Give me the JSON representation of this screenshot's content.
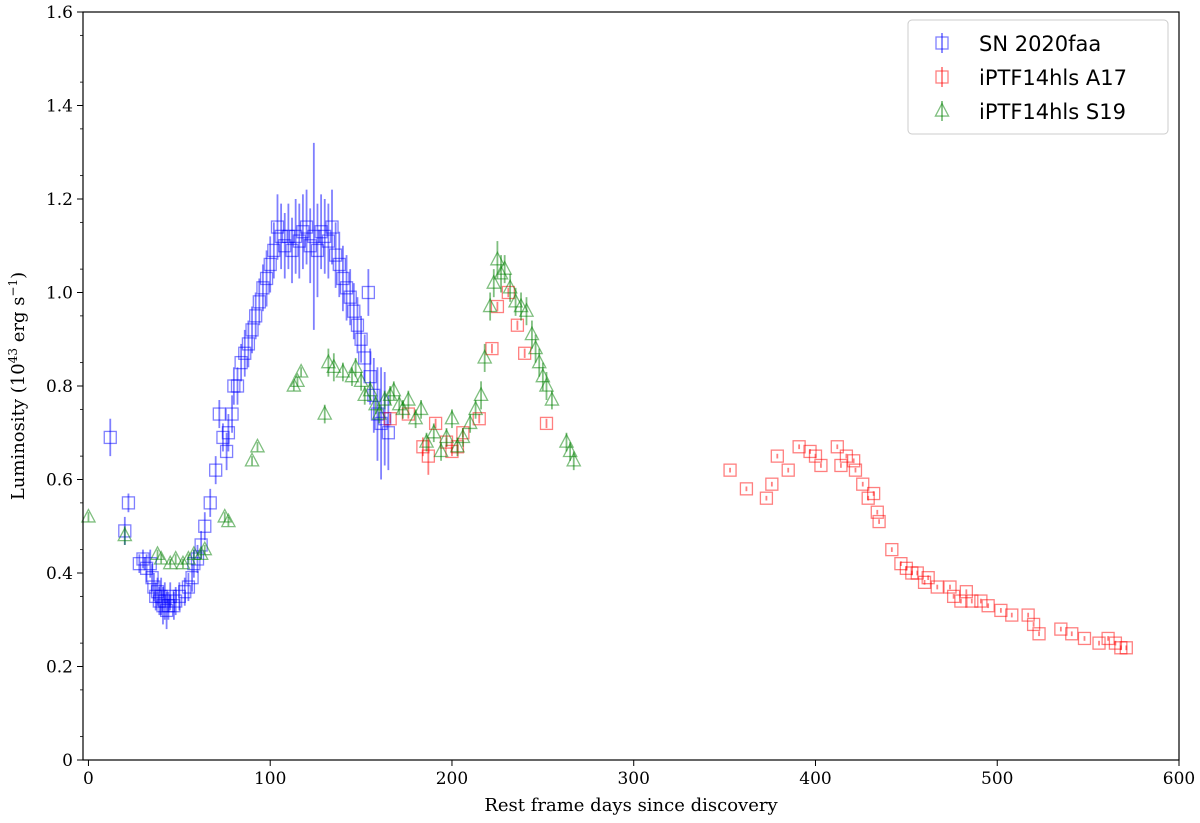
{
  "chart_data": {
    "type": "scatter",
    "title": "",
    "xlabel": "Rest frame days since discovery",
    "ylabel_parts": [
      "Luminosity (10",
      "43",
      " erg s",
      "−1",
      ")"
    ],
    "xlim": [
      -3,
      600
    ],
    "ylim": [
      0,
      1.6
    ],
    "x_ticks": [
      0,
      100,
      200,
      300,
      400,
      500,
      600
    ],
    "y_ticks": [
      0,
      0.2,
      0.4,
      0.6,
      0.8,
      1.0,
      1.2,
      1.4,
      1.6
    ],
    "y_tick_labels": [
      "0",
      "0.2",
      "0.4",
      "0.6",
      "0.8",
      "1.0",
      "1.2",
      "1.4",
      "1.6"
    ],
    "grid": false,
    "legend_position": "top-right",
    "series": [
      {
        "name": "SN 2020faa",
        "marker": "square-errorbar",
        "color": "#0000ff",
        "points": [
          [
            12,
            0.69,
            0.04
          ],
          [
            20,
            0.49,
            0.03
          ],
          [
            22,
            0.55,
            0.02
          ],
          [
            28,
            0.42,
            0.02
          ],
          [
            30,
            0.43,
            0.02
          ],
          [
            32,
            0.41,
            0.03
          ],
          [
            34,
            0.42,
            0.03
          ],
          [
            35,
            0.39,
            0.03
          ],
          [
            36,
            0.37,
            0.03
          ],
          [
            37,
            0.35,
            0.03
          ],
          [
            38,
            0.36,
            0.03
          ],
          [
            39,
            0.34,
            0.03
          ],
          [
            40,
            0.35,
            0.04
          ],
          [
            41,
            0.33,
            0.04
          ],
          [
            42,
            0.34,
            0.04
          ],
          [
            43,
            0.32,
            0.04
          ],
          [
            44,
            0.33,
            0.03
          ],
          [
            45,
            0.35,
            0.03
          ],
          [
            47,
            0.33,
            0.03
          ],
          [
            48,
            0.34,
            0.03
          ],
          [
            50,
            0.35,
            0.03
          ],
          [
            53,
            0.36,
            0.03
          ],
          [
            55,
            0.37,
            0.03
          ],
          [
            57,
            0.39,
            0.03
          ],
          [
            58,
            0.42,
            0.03
          ],
          [
            60,
            0.43,
            0.03
          ],
          [
            62,
            0.46,
            0.03
          ],
          [
            64,
            0.5,
            0.03
          ],
          [
            67,
            0.55,
            0.03
          ],
          [
            70,
            0.62,
            0.03
          ],
          [
            72,
            0.74,
            0.03
          ],
          [
            74,
            0.69,
            0.03
          ],
          [
            76,
            0.66,
            0.04
          ],
          [
            77,
            0.7,
            0.04
          ],
          [
            79,
            0.74,
            0.04
          ],
          [
            80,
            0.8,
            0.04
          ],
          [
            82,
            0.8,
            0.04
          ],
          [
            84,
            0.85,
            0.04
          ],
          [
            86,
            0.87,
            0.05
          ],
          [
            88,
            0.89,
            0.05
          ],
          [
            90,
            0.92,
            0.05
          ],
          [
            92,
            0.95,
            0.05
          ],
          [
            94,
            0.98,
            0.05
          ],
          [
            96,
            1.01,
            0.05
          ],
          [
            98,
            1.03,
            0.06
          ],
          [
            100,
            1.06,
            0.06
          ],
          [
            102,
            1.09,
            0.06
          ],
          [
            104,
            1.14,
            0.07
          ],
          [
            106,
            1.12,
            0.07
          ],
          [
            108,
            1.1,
            0.07
          ],
          [
            110,
            1.12,
            0.07
          ],
          [
            112,
            1.09,
            0.07
          ],
          [
            114,
            1.12,
            0.08
          ],
          [
            116,
            1.11,
            0.08
          ],
          [
            118,
            1.13,
            0.08
          ],
          [
            120,
            1.14,
            0.08
          ],
          [
            122,
            1.1,
            0.08
          ],
          [
            124,
            1.12,
            0.2
          ],
          [
            126,
            1.09,
            0.1
          ],
          [
            128,
            1.13,
            0.08
          ],
          [
            130,
            1.12,
            0.08
          ],
          [
            132,
            1.11,
            0.08
          ],
          [
            134,
            1.14,
            0.08
          ],
          [
            136,
            1.08,
            0.07
          ],
          [
            138,
            1.06,
            0.07
          ],
          [
            140,
            1.03,
            0.07
          ],
          [
            142,
            1.01,
            0.07
          ],
          [
            144,
            0.99,
            0.06
          ],
          [
            146,
            0.96,
            0.06
          ],
          [
            148,
            0.93,
            0.06
          ],
          [
            150,
            0.9,
            0.05
          ],
          [
            152,
            0.86,
            0.05
          ],
          [
            154,
            1.0,
            0.05
          ],
          [
            155,
            0.82,
            0.06
          ],
          [
            157,
            0.78,
            0.08
          ],
          [
            159,
            0.74,
            0.1
          ],
          [
            161,
            0.72,
            0.12
          ],
          [
            163,
            0.73,
            0.1
          ],
          [
            165,
            0.7,
            0.08
          ]
        ]
      },
      {
        "name": "iPTF14hls A17",
        "marker": "square-errorbar",
        "color": "#ff0000",
        "points": [
          [
            166,
            0.73,
            0.01
          ],
          [
            176,
            0.74,
            0.01
          ],
          [
            184,
            0.67,
            0.02
          ],
          [
            187,
            0.65,
            0.04
          ],
          [
            191,
            0.72,
            0.01
          ],
          [
            197,
            0.68,
            0.01
          ],
          [
            200,
            0.66,
            0.01
          ],
          [
            203,
            0.67,
            0.01
          ],
          [
            206,
            0.7,
            0.01
          ],
          [
            215,
            0.73,
            0.01
          ],
          [
            222,
            0.88,
            0.01
          ],
          [
            225,
            0.97,
            0.01
          ],
          [
            231,
            1.0,
            0.01
          ],
          [
            236,
            0.93,
            0.01
          ],
          [
            240,
            0.87,
            0.01
          ],
          [
            252,
            0.72,
            0.01
          ],
          [
            353,
            0.62,
            0.005
          ],
          [
            362,
            0.58,
            0.005
          ],
          [
            373,
            0.56,
            0.005
          ],
          [
            376,
            0.59,
            0.005
          ],
          [
            379,
            0.65,
            0.005
          ],
          [
            385,
            0.62,
            0.005
          ],
          [
            391,
            0.67,
            0.005
          ],
          [
            397,
            0.66,
            0.005
          ],
          [
            400,
            0.65,
            0.005
          ],
          [
            403,
            0.63,
            0.005
          ],
          [
            412,
            0.67,
            0.005
          ],
          [
            414,
            0.63,
            0.005
          ],
          [
            417,
            0.65,
            0.005
          ],
          [
            421,
            0.64,
            0.005
          ],
          [
            422,
            0.62,
            0.005
          ],
          [
            426,
            0.59,
            0.005
          ],
          [
            429,
            0.56,
            0.005
          ],
          [
            432,
            0.57,
            0.005
          ],
          [
            434,
            0.53,
            0.005
          ],
          [
            435,
            0.51,
            0.005
          ],
          [
            442,
            0.45,
            0.005
          ],
          [
            447,
            0.42,
            0.005
          ],
          [
            450,
            0.41,
            0.005
          ],
          [
            453,
            0.4,
            0.005
          ],
          [
            456,
            0.4,
            0.005
          ],
          [
            460,
            0.38,
            0.005
          ],
          [
            462,
            0.39,
            0.005
          ],
          [
            467,
            0.37,
            0.005
          ],
          [
            474,
            0.37,
            0.005
          ],
          [
            476,
            0.35,
            0.005
          ],
          [
            480,
            0.34,
            0.005
          ],
          [
            483,
            0.36,
            0.005
          ],
          [
            486,
            0.34,
            0.005
          ],
          [
            491,
            0.34,
            0.005
          ],
          [
            495,
            0.33,
            0.005
          ],
          [
            502,
            0.32,
            0.005
          ],
          [
            508,
            0.31,
            0.005
          ],
          [
            517,
            0.31,
            0.005
          ],
          [
            520,
            0.29,
            0.005
          ],
          [
            523,
            0.27,
            0.005
          ],
          [
            535,
            0.28,
            0.005
          ],
          [
            541,
            0.27,
            0.005
          ],
          [
            548,
            0.26,
            0.005
          ],
          [
            556,
            0.25,
            0.005
          ],
          [
            561,
            0.26,
            0.005
          ],
          [
            565,
            0.25,
            0.005
          ],
          [
            568,
            0.24,
            0.005
          ],
          [
            571,
            0.24,
            0.005
          ]
        ]
      },
      {
        "name": "iPTF14hls S19",
        "marker": "triangle-errorbar",
        "color": "#008000",
        "points": [
          [
            0,
            0.52,
            0.01
          ],
          [
            20,
            0.48,
            0.02
          ],
          [
            38,
            0.44,
            0.01
          ],
          [
            40,
            0.43,
            0.01
          ],
          [
            45,
            0.42,
            0.01
          ],
          [
            48,
            0.43,
            0.01
          ],
          [
            52,
            0.42,
            0.01
          ],
          [
            55,
            0.43,
            0.01
          ],
          [
            58,
            0.44,
            0.01
          ],
          [
            62,
            0.44,
            0.01
          ],
          [
            64,
            0.45,
            0.01
          ],
          [
            75,
            0.52,
            0.01
          ],
          [
            77,
            0.51,
            0.01
          ],
          [
            90,
            0.64,
            0.01
          ],
          [
            93,
            0.67,
            0.01
          ],
          [
            113,
            0.8,
            0.01
          ],
          [
            115,
            0.81,
            0.01
          ],
          [
            117,
            0.83,
            0.01
          ],
          [
            130,
            0.74,
            0.02
          ],
          [
            132,
            0.85,
            0.03
          ],
          [
            135,
            0.84,
            0.03
          ],
          [
            140,
            0.83,
            0.02
          ],
          [
            145,
            0.82,
            0.02
          ],
          [
            147,
            0.84,
            0.02
          ],
          [
            150,
            0.81,
            0.02
          ],
          [
            152,
            0.78,
            0.02
          ],
          [
            155,
            0.79,
            0.02
          ],
          [
            158,
            0.76,
            0.02
          ],
          [
            160,
            0.74,
            0.02
          ],
          [
            163,
            0.77,
            0.02
          ],
          [
            166,
            0.78,
            0.02
          ],
          [
            168,
            0.79,
            0.02
          ],
          [
            171,
            0.76,
            0.02
          ],
          [
            173,
            0.75,
            0.02
          ],
          [
            176,
            0.77,
            0.02
          ],
          [
            180,
            0.73,
            0.02
          ],
          [
            183,
            0.75,
            0.02
          ],
          [
            186,
            0.68,
            0.02
          ],
          [
            190,
            0.7,
            0.02
          ],
          [
            194,
            0.66,
            0.02
          ],
          [
            197,
            0.69,
            0.02
          ],
          [
            200,
            0.73,
            0.02
          ],
          [
            203,
            0.67,
            0.02
          ],
          [
            206,
            0.69,
            0.02
          ],
          [
            210,
            0.72,
            0.02
          ],
          [
            213,
            0.75,
            0.02
          ],
          [
            216,
            0.78,
            0.03
          ],
          [
            218,
            0.86,
            0.03
          ],
          [
            221,
            0.97,
            0.03
          ],
          [
            223,
            1.02,
            0.03
          ],
          [
            225,
            1.07,
            0.04
          ],
          [
            227,
            1.04,
            0.04
          ],
          [
            229,
            1.05,
            0.03
          ],
          [
            232,
            1.01,
            0.03
          ],
          [
            235,
            0.98,
            0.03
          ],
          [
            238,
            0.97,
            0.03
          ],
          [
            241,
            0.96,
            0.03
          ],
          [
            244,
            0.91,
            0.03
          ],
          [
            246,
            0.88,
            0.03
          ],
          [
            248,
            0.85,
            0.03
          ],
          [
            250,
            0.82,
            0.03
          ],
          [
            252,
            0.8,
            0.03
          ],
          [
            255,
            0.77,
            0.02
          ],
          [
            263,
            0.68,
            0.02
          ],
          [
            265,
            0.66,
            0.02
          ],
          [
            267,
            0.64,
            0.02
          ]
        ]
      }
    ]
  }
}
